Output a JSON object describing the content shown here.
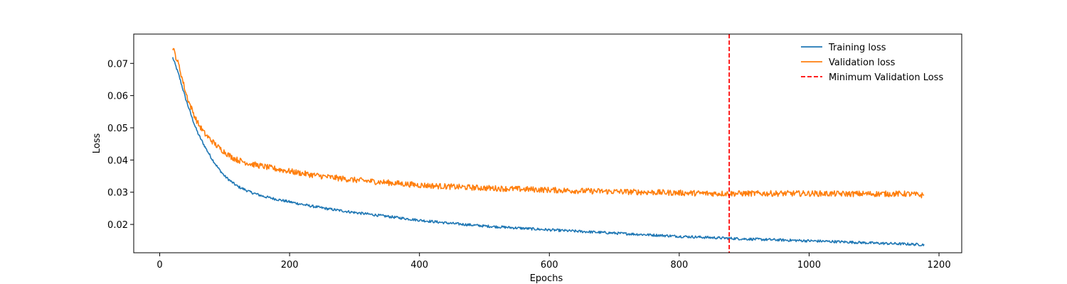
{
  "chart_data": {
    "type": "line",
    "title": "",
    "xlabel": "Epochs",
    "ylabel": "Loss",
    "xlim": [
      -40,
      1235
    ],
    "ylim": [
      0.0112,
      0.0791
    ],
    "xticks": [
      0,
      200,
      400,
      600,
      800,
      1000,
      1200
    ],
    "yticks": [
      0.02,
      0.03,
      0.04,
      0.05,
      0.06,
      0.07
    ],
    "grid": false,
    "legend_position": "top-right",
    "series": [
      {
        "name": "Training loss",
        "color": "#1f77b4",
        "style": "solid",
        "x": [
          20,
          25,
          30,
          35,
          40,
          45,
          50,
          55,
          60,
          70,
          80,
          90,
          100,
          110,
          120,
          140,
          160,
          180,
          200,
          230,
          260,
          300,
          350,
          400,
          450,
          500,
          550,
          600,
          650,
          700,
          750,
          800,
          850,
          900,
          950,
          1000,
          1050,
          1100,
          1150,
          1177
        ],
        "y": [
          0.0718,
          0.069,
          0.066,
          0.0625,
          0.059,
          0.056,
          0.053,
          0.0502,
          0.0478,
          0.044,
          0.0405,
          0.0375,
          0.035,
          0.0333,
          0.0318,
          0.03,
          0.0287,
          0.0278,
          0.027,
          0.0258,
          0.0248,
          0.0237,
          0.0225,
          0.0213,
          0.0203,
          0.0195,
          0.0189,
          0.0183,
          0.0178,
          0.0173,
          0.0168,
          0.0163,
          0.0159,
          0.0155,
          0.0152,
          0.0149,
          0.0146,
          0.0142,
          0.0139,
          0.0137
        ],
        "noise": 0.0004
      },
      {
        "name": "Validation loss",
        "color": "#ff7f0e",
        "style": "solid",
        "x": [
          20,
          25,
          30,
          35,
          40,
          45,
          50,
          55,
          60,
          70,
          80,
          90,
          100,
          110,
          120,
          140,
          160,
          180,
          200,
          230,
          260,
          300,
          350,
          400,
          450,
          500,
          550,
          600,
          650,
          700,
          750,
          800,
          850,
          900,
          950,
          1000,
          1050,
          1100,
          1150,
          1177
        ],
        "y": [
          0.075,
          0.072,
          0.069,
          0.065,
          0.061,
          0.058,
          0.0555,
          0.053,
          0.051,
          0.048,
          0.046,
          0.044,
          0.0425,
          0.041,
          0.04,
          0.0388,
          0.038,
          0.0372,
          0.0365,
          0.0355,
          0.0347,
          0.0338,
          0.033,
          0.0322,
          0.0317,
          0.0313,
          0.031,
          0.0307,
          0.0304,
          0.0302,
          0.03,
          0.0298,
          0.0296,
          0.0296,
          0.0296,
          0.0296,
          0.0295,
          0.0295,
          0.0295,
          0.029
        ],
        "noise": 0.0009
      }
    ],
    "vlines": [
      {
        "name": "Minimum Validation Loss",
        "x": 877,
        "color": "#ff0000",
        "style": "dashed"
      }
    ]
  }
}
